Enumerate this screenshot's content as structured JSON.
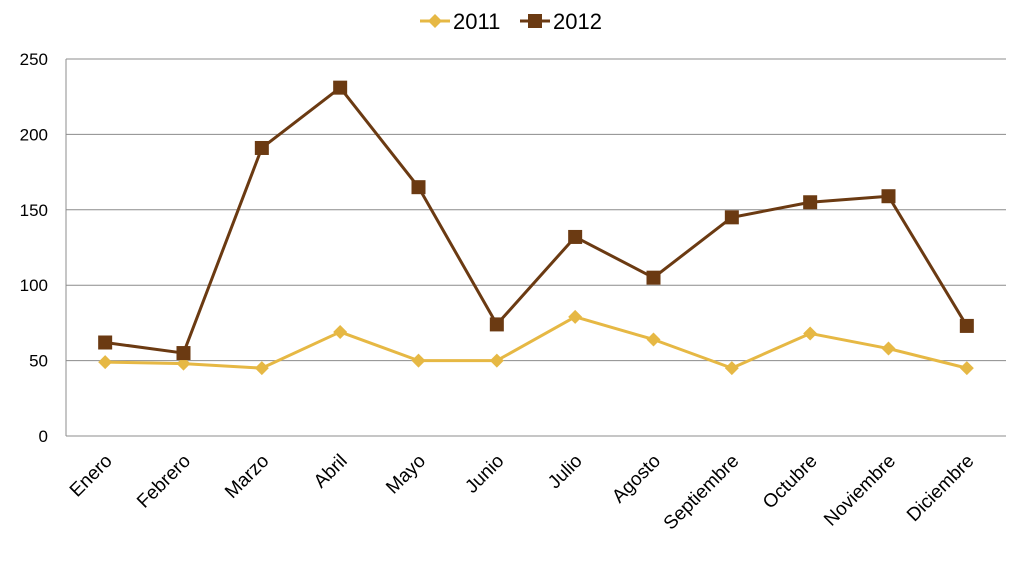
{
  "chart_data": {
    "type": "line",
    "title": "",
    "xlabel": "",
    "ylabel": "",
    "categories": [
      "Enero",
      "Febrero",
      "Marzo",
      "Abril",
      "Mayo",
      "Junio",
      "Julio",
      "Agosto",
      "Septiembre",
      "Octubre",
      "Noviembre",
      "Diciembre"
    ],
    "ylim": [
      0,
      250
    ],
    "yticks": [
      "0",
      "50",
      "100",
      "150",
      "200",
      "250"
    ],
    "grid": true,
    "legend_position": "top-center",
    "series": [
      {
        "name": "2011",
        "color": "#e6b844",
        "marker": "diamond",
        "values": [
          49,
          48,
          45,
          69,
          50,
          50,
          79,
          64,
          45,
          68,
          58,
          45
        ]
      },
      {
        "name": "2012",
        "color": "#6b3a12",
        "marker": "square",
        "values": [
          62,
          55,
          191,
          231,
          165,
          74,
          132,
          105,
          145,
          155,
          159,
          73
        ]
      }
    ]
  }
}
